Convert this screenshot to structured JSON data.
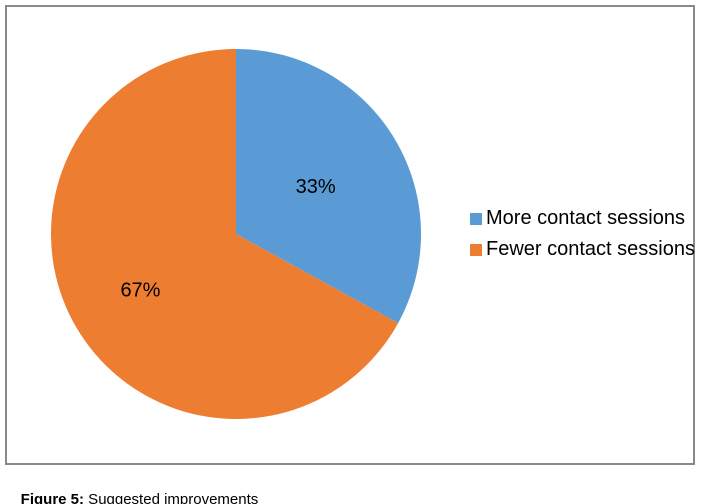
{
  "page": {
    "background_color": "#ffffff",
    "frame_border_color": "#8a8a8a"
  },
  "chart_data": {
    "type": "pie",
    "title": "",
    "legend_position": "right",
    "start_angle_deg": 0,
    "direction": "clockwise",
    "data_label_color": "#000000",
    "slices": [
      {
        "label": "More contact sessions",
        "value": 33,
        "percent_label": "33%",
        "color": "#5B9BD5",
        "label_r_frac": 0.5
      },
      {
        "label": "Fewer contact sessions",
        "value": 67,
        "percent_label": "67%",
        "color": "#ED7D31",
        "label_r_frac": 0.6
      }
    ]
  },
  "caption": {
    "prefix": "Figure 5:",
    "text": " Suggested improvements"
  }
}
